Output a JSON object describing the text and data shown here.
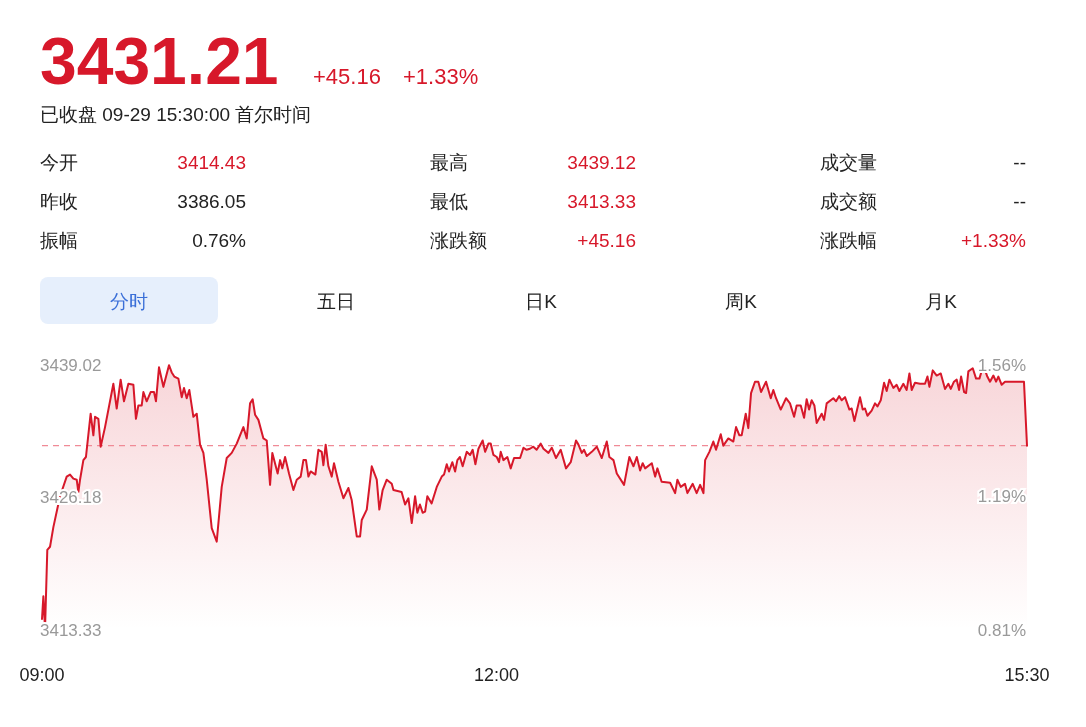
{
  "chart_data": {
    "type": "area",
    "title": "3431.21",
    "subtitle": "已收盘 09-29 15:30:00 首尔时间",
    "annotations": [
      "+45.16",
      "+1.33%",
      "今开",
      "3414.43",
      "最高",
      "3439.12",
      "成交量",
      "--",
      "昨收",
      "3386.05",
      "最低",
      "3413.33",
      "成交额",
      "--",
      "振幅",
      "0.76%",
      "涨跌额",
      "+45.16",
      "涨跌幅",
      "+1.33%",
      "分时",
      "五日",
      "日K",
      "周K",
      "月K"
    ],
    "color": "#d7182a",
    "xlim": [
      9,
      15.5
    ],
    "xticks": [
      {
        "value": 9,
        "label": "09:00"
      },
      {
        "value": 12,
        "label": "12:00"
      },
      {
        "value": 15.5,
        "label": "15:30"
      }
    ],
    "ylim": [
      3413.33,
      3439.02
    ],
    "yticks": [
      3413.33,
      3426.18,
      3439.02
    ],
    "y2lim": [
      0.81,
      1.56
    ],
    "y2ticks": [
      {
        "value": 0.81,
        "label": "0.81%"
      },
      {
        "value": 1.19,
        "label": "1.19%"
      },
      {
        "value": 1.56,
        "label": "1.56%"
      }
    ],
    "ref_lines": [
      {
        "axis": "y",
        "value": 3431.21,
        "color": "#f08a96",
        "line_style": "dashed"
      }
    ],
    "grid": false,
    "x": [
      9.0,
      9.009,
      9.02,
      9.035,
      9.053,
      9.075,
      9.119,
      9.163,
      9.185,
      9.207,
      9.229,
      9.24,
      9.251,
      9.273,
      9.29,
      9.321,
      9.339,
      9.35,
      9.372,
      9.387,
      9.416,
      9.471,
      9.493,
      9.519,
      9.541,
      9.57,
      9.603,
      9.62,
      9.636,
      9.658,
      9.669,
      9.691,
      9.717,
      9.739,
      9.752,
      9.772,
      9.801,
      9.838,
      9.856,
      9.873,
      9.9,
      9.922,
      9.937,
      9.955,
      9.972,
      9.999,
      10.021,
      10.043,
      10.065,
      10.087,
      10.12,
      10.153,
      10.186,
      10.219,
      10.252,
      10.285,
      10.307,
      10.329,
      10.351,
      10.373,
      10.39,
      10.406,
      10.428,
      10.461,
      10.483,
      10.505,
      10.52,
      10.555,
      10.571,
      10.586,
      10.604,
      10.63,
      10.659,
      10.681,
      10.707,
      10.725,
      10.742,
      10.758,
      10.773,
      10.804,
      10.824,
      10.846,
      10.857,
      10.872,
      10.89,
      10.912,
      10.927,
      10.956,
      10.989,
      11.022,
      11.044,
      11.077,
      11.099,
      11.11,
      11.143,
      11.176,
      11.209,
      11.226,
      11.248,
      11.275,
      11.308,
      11.319,
      11.373,
      11.396,
      11.418,
      11.44,
      11.462,
      11.477,
      11.494,
      11.512,
      11.528,
      11.543,
      11.571,
      11.605,
      11.638,
      11.653,
      11.671,
      11.686,
      11.708,
      11.726,
      11.741,
      11.758,
      11.776,
      11.803,
      11.825,
      11.842,
      11.86,
      11.88,
      11.908,
      11.924,
      11.946,
      11.961,
      11.979,
      12.001,
      12.016,
      12.027,
      12.045,
      12.071,
      12.093,
      12.115,
      12.155,
      12.177,
      12.198,
      12.22,
      12.242,
      12.264,
      12.291,
      12.309,
      12.342,
      12.364,
      12.392,
      12.423,
      12.458,
      12.489,
      12.524,
      12.54,
      12.562,
      12.577,
      12.595,
      12.628,
      12.661,
      12.694,
      12.727,
      12.744,
      12.771,
      12.793,
      12.841,
      12.876,
      12.903,
      12.925,
      12.947,
      12.964,
      12.98,
      13.024,
      13.046,
      13.061,
      13.089,
      13.145,
      13.178,
      13.193,
      13.215,
      13.243,
      13.259,
      13.294,
      13.32,
      13.343,
      13.365,
      13.376,
      13.404,
      13.43,
      13.448,
      13.479,
      13.496,
      13.529,
      13.562,
      13.58,
      13.602,
      13.617,
      13.644,
      13.661,
      13.679,
      13.705,
      13.727,
      13.745,
      13.778,
      13.809,
      13.826,
      13.844,
      13.875,
      13.91,
      13.936,
      13.963,
      13.98,
      14.007,
      14.029,
      14.046,
      14.062,
      14.079,
      14.097,
      14.112,
      14.145,
      14.161,
      14.178,
      14.222,
      14.24,
      14.26,
      14.277,
      14.299,
      14.328,
      14.343,
      14.361,
      14.398,
      14.416,
      14.431,
      14.447,
      14.475,
      14.497,
      14.513,
      14.535,
      14.557,
      14.574,
      14.592,
      14.618,
      14.64,
      14.658,
      14.684,
      14.706,
      14.724,
      14.739,
      14.761,
      14.794,
      14.827,
      14.843,
      14.856,
      14.878,
      14.904,
      14.931,
      14.959,
      14.981,
      14.997,
      15.018,
      15.036,
      15.052,
      15.065,
      15.085,
      15.098,
      15.113,
      15.142,
      15.164,
      15.186,
      15.212,
      15.238,
      15.256,
      15.278,
      15.296,
      15.311,
      15.333,
      15.355,
      15.48,
      15.5
    ],
    "values": [
      3414.4,
      3416.6,
      3413.4,
      3421.1,
      3421.4,
      3423.3,
      3426.3,
      3428.2,
      3428.4,
      3428.0,
      3427.9,
      3426.7,
      3427.9,
      3429.8,
      3430.1,
      3434.3,
      3432.2,
      3434.0,
      3433.8,
      3431.1,
      3433.0,
      3437.2,
      3434.8,
      3437.6,
      3435.5,
      3437.2,
      3437.1,
      3433.8,
      3435.1,
      3435.1,
      3436.4,
      3435.5,
      3436.4,
      3436.4,
      3435.5,
      3438.8,
      3436.9,
      3439.0,
      3438.3,
      3437.9,
      3437.7,
      3435.9,
      3436.8,
      3435.8,
      3436.6,
      3434.0,
      3434.3,
      3431.3,
      3430.5,
      3427.9,
      3423.2,
      3421.9,
      3427.2,
      3430.0,
      3430.5,
      3431.4,
      3432.2,
      3433.0,
      3431.9,
      3435.3,
      3435.7,
      3434.2,
      3433.7,
      3431.9,
      3431.7,
      3427.4,
      3430.5,
      3428.5,
      3429.8,
      3429.0,
      3430.1,
      3428.5,
      3426.9,
      3427.9,
      3428.2,
      3429.8,
      3429.8,
      3428.2,
      3428.7,
      3428.4,
      3430.8,
      3430.6,
      3429.3,
      3431.3,
      3429.2,
      3428.2,
      3429.5,
      3427.7,
      3426.1,
      3427.1,
      3425.9,
      3422.4,
      3422.4,
      3424.0,
      3425.0,
      3429.2,
      3427.9,
      3425.0,
      3426.9,
      3427.9,
      3427.5,
      3426.9,
      3426.7,
      3425.5,
      3426.1,
      3423.7,
      3426.3,
      3424.7,
      3425.5,
      3424.7,
      3424.8,
      3426.3,
      3425.6,
      3427.2,
      3428.2,
      3428.4,
      3429.4,
      3428.7,
      3429.6,
      3428.7,
      3429.8,
      3430.1,
      3429.2,
      3430.6,
      3430.3,
      3430.8,
      3429.4,
      3430.9,
      3431.7,
      3430.6,
      3431.4,
      3431.4,
      3430.3,
      3430.1,
      3429.6,
      3430.6,
      3429.8,
      3430.1,
      3429.0,
      3430.0,
      3430.0,
      3431.0,
      3430.8,
      3430.9,
      3431.1,
      3430.8,
      3431.4,
      3430.9,
      3430.5,
      3431.0,
      3430.0,
      3430.8,
      3429.0,
      3429.6,
      3431.7,
      3431.3,
      3430.5,
      3430.8,
      3430.2,
      3430.6,
      3431.1,
      3430.0,
      3431.6,
      3430.1,
      3429.8,
      3428.5,
      3427.4,
      3430.1,
      3429.2,
      3430.1,
      3428.8,
      3429.5,
      3429.0,
      3429.5,
      3428.2,
      3429.0,
      3427.7,
      3427.6,
      3426.6,
      3427.9,
      3427.2,
      3427.5,
      3426.6,
      3427.5,
      3426.6,
      3427.4,
      3426.6,
      3429.8,
      3430.6,
      3431.6,
      3430.8,
      3432.3,
      3431.2,
      3431.9,
      3431.6,
      3433.0,
      3432.2,
      3432.2,
      3434.3,
      3432.9,
      3436.3,
      3437.4,
      3437.4,
      3436.4,
      3437.4,
      3435.8,
      3436.6,
      3435.8,
      3434.7,
      3435.8,
      3435.3,
      3434.0,
      3435.1,
      3435.1,
      3433.9,
      3435.7,
      3434.7,
      3435.6,
      3435.1,
      3433.4,
      3434.3,
      3433.7,
      3435.3,
      3435.8,
      3435.5,
      3436.0,
      3435.6,
      3435.9,
      3434.7,
      3434.8,
      3433.6,
      3435.9,
      3434.7,
      3434.8,
      3434.1,
      3434.6,
      3435.3,
      3435.0,
      3435.6,
      3437.3,
      3436.5,
      3437.6,
      3436.8,
      3437.1,
      3436.5,
      3437.2,
      3436.6,
      3438.2,
      3436.6,
      3437.3,
      3437.2,
      3437.2,
      3437.9,
      3436.9,
      3438.5,
      3438.0,
      3438.2,
      3436.7,
      3437.2,
      3436.7,
      3437.4,
      3437.6,
      3436.6,
      3437.9,
      3436.4,
      3436.3,
      3438.4,
      3438.7,
      3437.7,
      3437.7,
      3439.0,
      3437.9,
      3437.4,
      3438.0,
      3437.4,
      3437.9,
      3437.1,
      3437.4,
      3437.4,
      3431.2
    ]
  }
}
